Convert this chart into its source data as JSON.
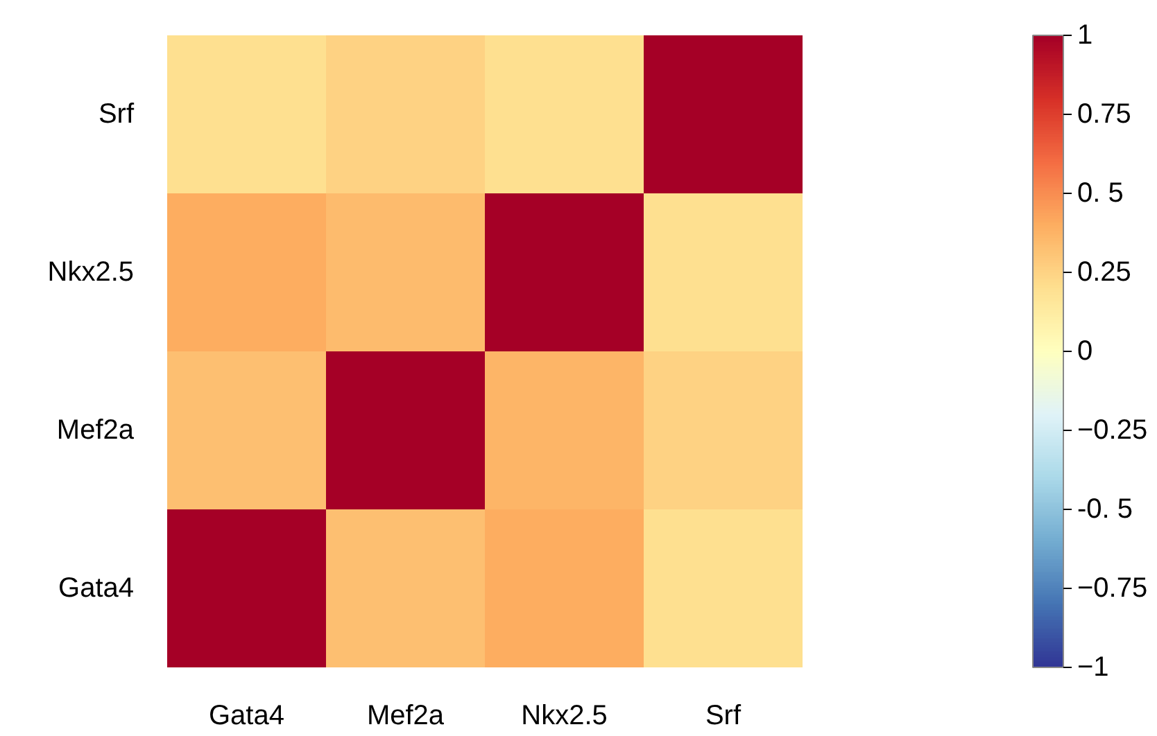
{
  "chart_data": {
    "type": "heatmap",
    "categories": [
      "Gata4",
      "Mef2a",
      "Nkx2.5",
      "Srf"
    ],
    "y_categories": [
      "Srf",
      "Nkx2.5",
      "Mef2a",
      "Gata4"
    ],
    "cells": [
      [
        0.2,
        0.25,
        0.2,
        1
      ],
      [
        0.4,
        0.35,
        1,
        0.2
      ],
      [
        0.33,
        1,
        0.37,
        0.25
      ],
      [
        1,
        0.33,
        0.4,
        0.2
      ]
    ],
    "clim": [
      -1,
      1
    ],
    "cticks": [
      1,
      0.75,
      {
        "value": 0.5,
        "label": "0. 5"
      },
      0.25,
      0,
      -0.25,
      {
        "value": -0.5,
        "label": "-0. 5"
      },
      -0.75,
      -1
    ]
  }
}
